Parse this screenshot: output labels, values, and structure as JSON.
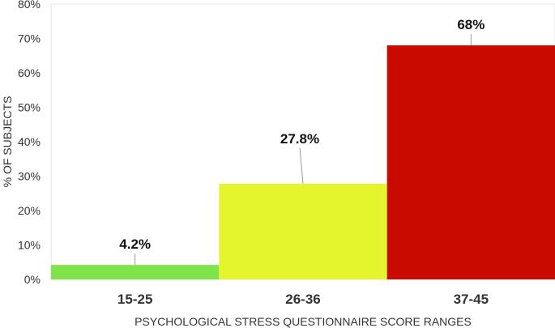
{
  "chart_data": {
    "type": "bar",
    "categories": [
      "15-25",
      "26-36",
      "37-45"
    ],
    "values": [
      4.2,
      27.8,
      68
    ],
    "data_labels": [
      "4.2%",
      "27.8%",
      "68%"
    ],
    "colors": [
      "#7fe34a",
      "#e4f52e",
      "#c80a00"
    ],
    "xlabel": "PSYCHOLOGICAL STRESS QUESTIONNAIRE SCORE RANGES",
    "ylabel": "% OF SUBJECTS",
    "ylim": [
      0,
      80
    ],
    "yticks": [
      "0%",
      "10%",
      "20%",
      "30%",
      "40%",
      "50%",
      "60%",
      "70%",
      "80%"
    ],
    "grid": false,
    "legend": "none"
  }
}
